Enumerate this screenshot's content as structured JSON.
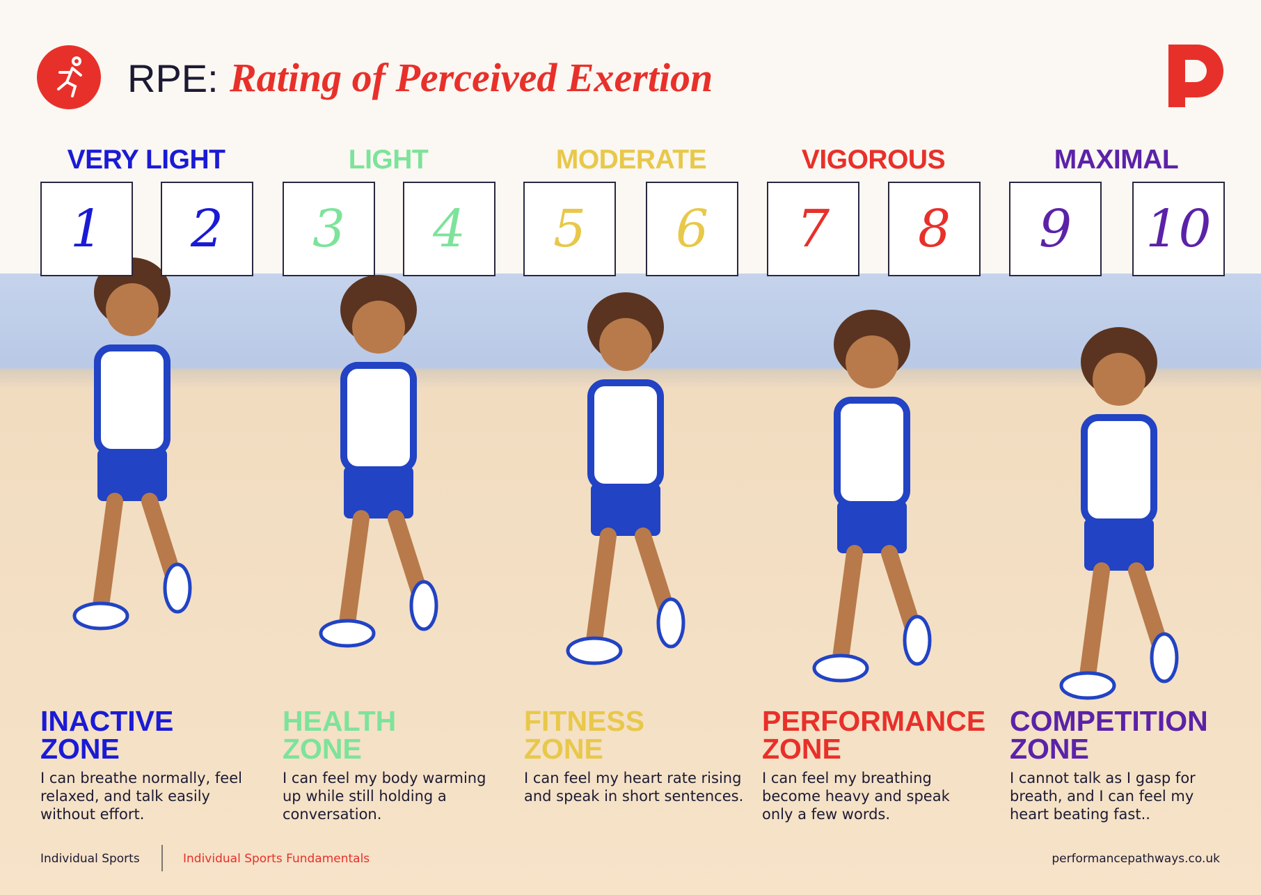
{
  "header": {
    "prefix": "RPE:",
    "title": "Rating of Perceived Exertion"
  },
  "levels": [
    {
      "label": "VERY LIGHT",
      "color": "#1a1ad6",
      "numbers": [
        "1",
        "2"
      ]
    },
    {
      "label": "LIGHT",
      "color": "#7de39a",
      "numbers": [
        "3",
        "4"
      ]
    },
    {
      "label": "MODERATE",
      "color": "#e8c84a",
      "numbers": [
        "5",
        "6"
      ]
    },
    {
      "label": "VIGOROUS",
      "color": "#e8302a",
      "numbers": [
        "7",
        "8"
      ]
    },
    {
      "label": "MAXIMAL",
      "color": "#5b22a8",
      "numbers": [
        "9",
        "10"
      ]
    }
  ],
  "zones": [
    {
      "title": "INACTIVE ZONE",
      "description": "I can breathe normally, feel relaxed, and talk easily without effort."
    },
    {
      "title": "HEALTH ZONE",
      "description": "I can feel my body warming up while still holding a conversation."
    },
    {
      "title": "FITNESS ZONE",
      "description": "I can feel my heart rate rising and speak in short sentences."
    },
    {
      "title": "PERFORMANCE ZONE",
      "description": "I can feel my breathing become heavy and speak only a few words."
    },
    {
      "title": "COMPETITION ZONE",
      "description": "I cannot talk as I gasp for breath, and I can feel my heart beating fast.."
    }
  ],
  "footer": {
    "category": "Individual Sports",
    "course": "Individual Sports Fundamentals",
    "website": "performancepathways.co.uk"
  }
}
